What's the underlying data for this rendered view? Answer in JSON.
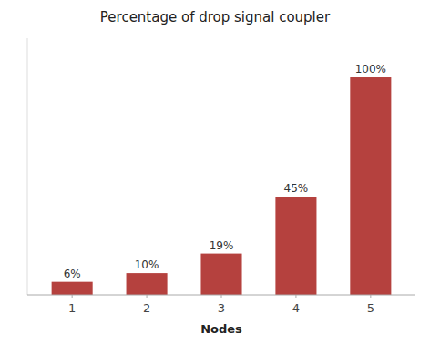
{
  "chart_data": {
    "type": "bar",
    "title": "Percentage of drop signal coupler",
    "xlabel": "Nodes",
    "categories": [
      "1",
      "2",
      "3",
      "4",
      "5"
    ],
    "values": [
      6,
      10,
      19,
      45,
      100
    ],
    "value_labels": [
      "6%",
      "10%",
      "19%",
      "45%",
      "100%"
    ],
    "data_labels": true,
    "color": "#b5413e",
    "ylim": [
      0,
      118
    ],
    "grid": false,
    "tick_labels": "x"
  }
}
